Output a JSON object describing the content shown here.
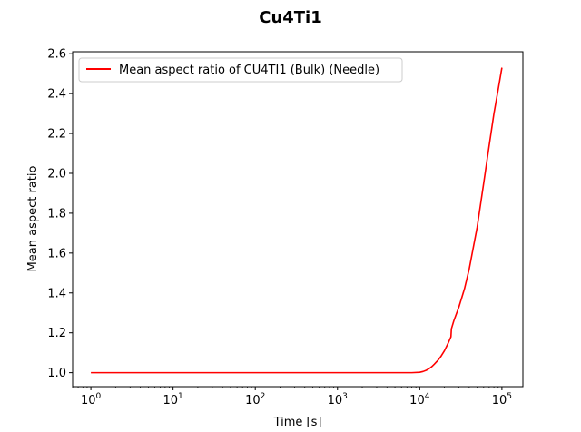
{
  "chart_data": {
    "type": "line",
    "title": "Cu4Ti1",
    "xlabel": "Time [s]",
    "ylabel": "Mean aspect ratio",
    "xscale": "log",
    "xlim": [
      0.6,
      180000
    ],
    "ylim": [
      0.93,
      2.61
    ],
    "x_ticks": [
      1,
      10,
      100,
      1000,
      10000,
      100000
    ],
    "x_tick_labels": [
      {
        "base": "10",
        "exp": "0"
      },
      {
        "base": "10",
        "exp": "1"
      },
      {
        "base": "10",
        "exp": "2"
      },
      {
        "base": "10",
        "exp": "3"
      },
      {
        "base": "10",
        "exp": "4"
      },
      {
        "base": "10",
        "exp": "5"
      }
    ],
    "y_ticks": [
      1.0,
      1.2,
      1.4,
      1.6,
      1.8,
      2.0,
      2.2,
      2.4,
      2.6
    ],
    "y_tick_labels": [
      "1.0",
      "1.2",
      "1.4",
      "1.6",
      "1.8",
      "2.0",
      "2.2",
      "2.4",
      "2.6"
    ],
    "grid": false,
    "legend_position": "top-left",
    "series": [
      {
        "name": "Mean aspect ratio of CU4TI1 (Bulk) (Needle)",
        "color": "#ff0000",
        "x": [
          1,
          10,
          100,
          1000,
          5000,
          8000,
          10000,
          11000,
          12000,
          13000,
          14000,
          15000,
          16500,
          18000,
          20000,
          22000,
          24000,
          24300,
          26000,
          30000,
          35000,
          40000,
          50000,
          60000,
          70000,
          80000,
          90000,
          100000
        ],
        "y": [
          1.0,
          1.0,
          1.0,
          1.0,
          1.0,
          1.0,
          1.002,
          1.006,
          1.012,
          1.02,
          1.03,
          1.042,
          1.06,
          1.08,
          1.11,
          1.145,
          1.18,
          1.22,
          1.26,
          1.33,
          1.42,
          1.52,
          1.73,
          1.95,
          2.14,
          2.3,
          2.42,
          2.53
        ]
      }
    ]
  }
}
